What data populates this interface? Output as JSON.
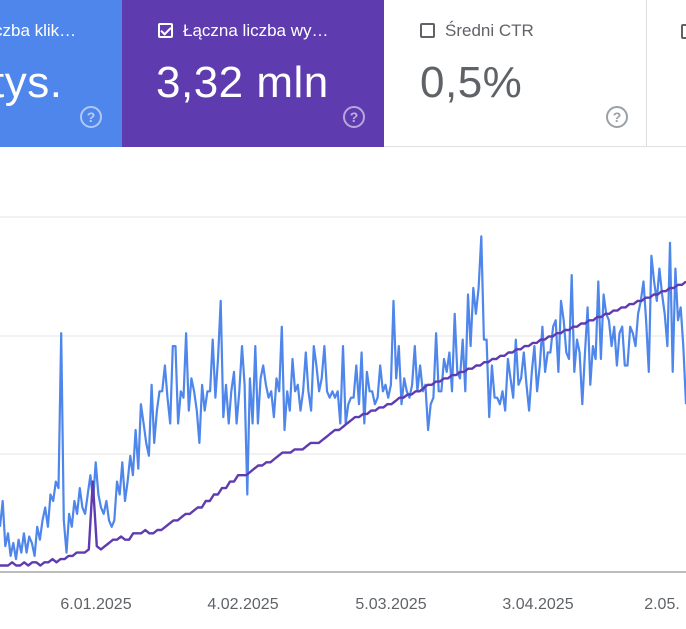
{
  "metrics": {
    "clicks": {
      "label": "Łączna liczba kliknięć",
      "label_visible": "czba klik…",
      "value": "…tys.",
      "value_visible": "tys.",
      "color": "#4e86eb",
      "checked": true
    },
    "impressions": {
      "label": "Łączna liczba wy…",
      "value": "3,32 mln",
      "color": "#5e3cb0",
      "checked": true
    },
    "ctr": {
      "label": "Średni CTR",
      "value": "0,5%",
      "checked": false
    },
    "position": {
      "checked": false
    }
  },
  "help_icon": "help-circle-icon",
  "chart_data": {
    "type": "line",
    "x_ticks": [
      "6.01.2025",
      "4.02.2025",
      "5.03.2025",
      "3.04.2025",
      "2.05."
    ],
    "y_ticks": [],
    "grid": true,
    "series": [
      {
        "color": "#4e86eb",
        "values": [
          14,
          22,
          8,
          12,
          5,
          9,
          4,
          10,
          6,
          12,
          6,
          11,
          9,
          5,
          14,
          10,
          16,
          20,
          14,
          24,
          22,
          28,
          26,
          74,
          16,
          6,
          18,
          14,
          22,
          18,
          26,
          20,
          18,
          24,
          30,
          22,
          34,
          24,
          20,
          18,
          22,
          16,
          14,
          16,
          28,
          24,
          34,
          22,
          28,
          36,
          30,
          44,
          32,
          52,
          46,
          40,
          36,
          58,
          40,
          50,
          56,
          56,
          64,
          54,
          46,
          70,
          70,
          46,
          56,
          54,
          74,
          50,
          60,
          56,
          50,
          40,
          58,
          50,
          56,
          56,
          72,
          54,
          66,
          84,
          48,
          58,
          46,
          56,
          62,
          46,
          56,
          70,
          58,
          24,
          60,
          46,
          70,
          46,
          60,
          64,
          58,
          54,
          56,
          48,
          60,
          56,
          76,
          44,
          56,
          50,
          66,
          56,
          58,
          50,
          56,
          68,
          56,
          50,
          70,
          64,
          56,
          60,
          70,
          56,
          54,
          56,
          54,
          56,
          46,
          70,
          46,
          52,
          54,
          54,
          64,
          52,
          68,
          46,
          62,
          56,
          56,
          52,
          54,
          64,
          56,
          58,
          54,
          58,
          84,
          60,
          70,
          52,
          60,
          56,
          54,
          58,
          70,
          56,
          64,
          56,
          58,
          44,
          52,
          54,
          74,
          56,
          56,
          66,
          62,
          68,
          56,
          80,
          62,
          60,
          72,
          56,
          86,
          70,
          88,
          80,
          88,
          104,
          72,
          72,
          48,
          64,
          54,
          54,
          52,
          56,
          50,
          66,
          60,
          54,
          72,
          58,
          60,
          68,
          58,
          50,
          62,
          70,
          56,
          64,
          76,
          62,
          68,
          68,
          76,
          78,
          62,
          84,
          78,
          68,
          66,
          92,
          62,
          72,
          68,
          52,
          68,
          82,
          58,
          70,
          66,
          90,
          66,
          86,
          80,
          78,
          70,
          76,
          64,
          74,
          76,
          64,
          64,
          76,
          74,
          70,
          80,
          84,
          90,
          78,
          62,
          98,
          90,
          84,
          94,
          86,
          80,
          70,
          102,
          62,
          94,
          78,
          82,
          70,
          52
        ]
      },
      {
        "color": "#5e3cb0",
        "values": [
          2,
          2,
          2,
          3,
          2,
          2,
          3,
          2,
          3,
          3,
          2,
          3,
          3,
          4,
          3,
          4,
          4,
          5,
          5,
          6,
          6,
          6,
          7,
          28,
          8,
          7,
          8,
          9,
          10,
          10,
          11,
          10,
          10,
          12,
          12,
          12,
          13,
          12,
          12,
          13,
          13,
          14,
          15,
          16,
          16,
          17,
          18,
          18,
          19,
          20,
          20,
          22,
          22,
          24,
          24,
          26,
          26,
          28,
          28,
          30,
          30,
          30,
          31,
          32,
          33,
          33,
          34,
          34,
          35,
          36,
          37,
          37,
          37,
          38,
          38,
          38,
          39,
          40,
          40,
          40,
          41,
          42,
          43,
          44,
          44,
          45,
          46,
          47,
          48,
          48,
          49,
          49,
          50,
          50,
          51,
          51,
          52,
          52,
          53,
          54,
          54,
          55,
          55,
          56,
          56,
          57,
          58,
          58,
          59,
          59,
          60,
          60,
          61,
          61,
          62,
          62,
          63,
          63,
          64,
          64,
          65,
          65,
          66,
          66,
          67,
          67,
          68,
          68,
          69,
          69,
          70,
          70,
          71,
          71,
          72,
          72,
          73,
          73,
          74,
          74,
          75,
          75,
          76,
          76,
          77,
          77,
          78,
          78,
          79,
          79,
          80,
          80,
          81,
          81,
          82,
          82,
          83,
          83,
          84,
          84,
          85,
          85,
          86,
          86,
          87,
          87,
          88,
          88,
          89,
          89,
          90
        ]
      }
    ]
  }
}
